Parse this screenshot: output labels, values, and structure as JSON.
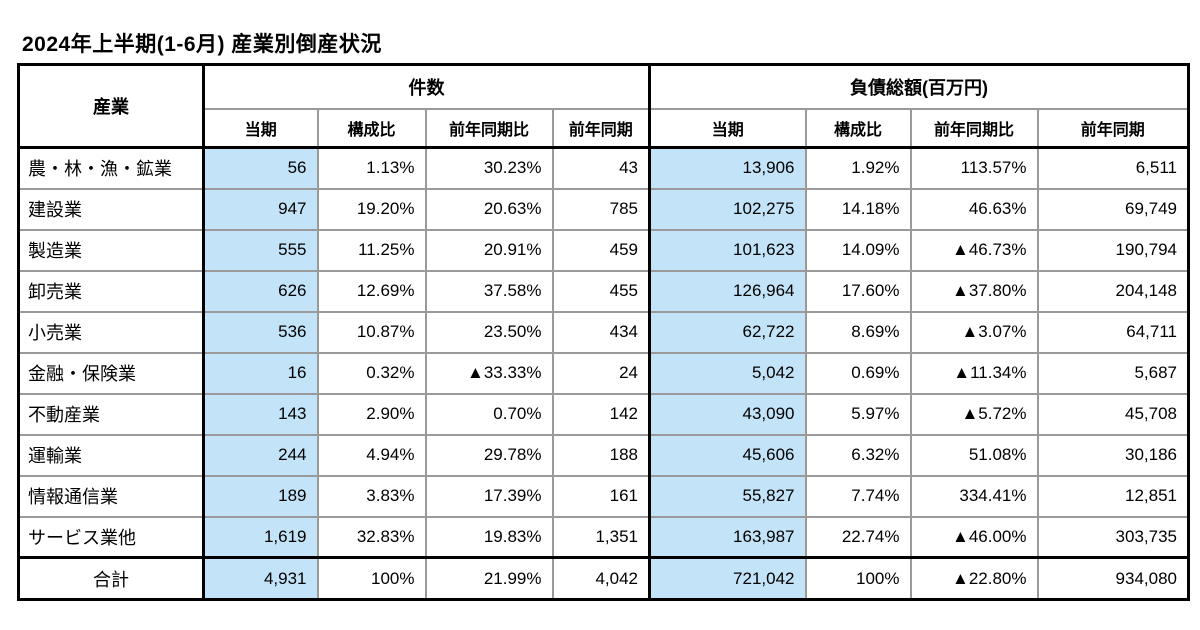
{
  "title": "2024年上半期(1-6月) 産業別倒産状況",
  "colors": {
    "highlight_blue": "#c3e3f8",
    "grid_gray": "#9a9a9a",
    "frame_black": "#000000"
  },
  "table": {
    "corner_header": "産業",
    "groups": [
      {
        "label": "件数",
        "subcolumns": [
          "当期",
          "構成比",
          "前年同期比",
          "前年同期"
        ]
      },
      {
        "label": "負債総額(百万円)",
        "subcolumns": [
          "当期",
          "構成比",
          "前年同期比",
          "前年同期"
        ]
      }
    ],
    "rows": [
      {
        "cells": [
          "農・林・漁・鉱業",
          "56",
          "1.13%",
          "30.23%",
          "43",
          "13,906",
          "1.92%",
          "113.57%",
          "6,511"
        ]
      },
      {
        "cells": [
          "建設業",
          "947",
          "19.20%",
          "20.63%",
          "785",
          "102,275",
          "14.18%",
          "46.63%",
          "69,749"
        ]
      },
      {
        "cells": [
          "製造業",
          "555",
          "11.25%",
          "20.91%",
          "459",
          "101,623",
          "14.09%",
          "▲46.73%",
          "190,794"
        ]
      },
      {
        "cells": [
          "卸売業",
          "626",
          "12.69%",
          "37.58%",
          "455",
          "126,964",
          "17.60%",
          "▲37.80%",
          "204,148"
        ]
      },
      {
        "cells": [
          "小売業",
          "536",
          "10.87%",
          "23.50%",
          "434",
          "62,722",
          "8.69%",
          "▲3.07%",
          "64,711"
        ]
      },
      {
        "cells": [
          "金融・保険業",
          "16",
          "0.32%",
          "▲33.33%",
          "24",
          "5,042",
          "0.69%",
          "▲11.34%",
          "5,687"
        ]
      },
      {
        "cells": [
          "不動産業",
          "143",
          "2.90%",
          "0.70%",
          "142",
          "43,090",
          "5.97%",
          "▲5.72%",
          "45,708"
        ]
      },
      {
        "cells": [
          "運輸業",
          "244",
          "4.94%",
          "29.78%",
          "188",
          "45,606",
          "6.32%",
          "51.08%",
          "30,186"
        ]
      },
      {
        "cells": [
          "情報通信業",
          "189",
          "3.83%",
          "17.39%",
          "161",
          "55,827",
          "7.74%",
          "334.41%",
          "12,851"
        ]
      },
      {
        "cells": [
          "サービス業他",
          "1,619",
          "32.83%",
          "19.83%",
          "1,351",
          "163,987",
          "22.74%",
          "▲46.00%",
          "303,735"
        ]
      },
      {
        "cells": [
          "合計",
          "4,931",
          "100%",
          "21.99%",
          "4,042",
          "721,042",
          "100%",
          "▲22.80%",
          "934,080"
        ],
        "is_total": true
      }
    ]
  }
}
